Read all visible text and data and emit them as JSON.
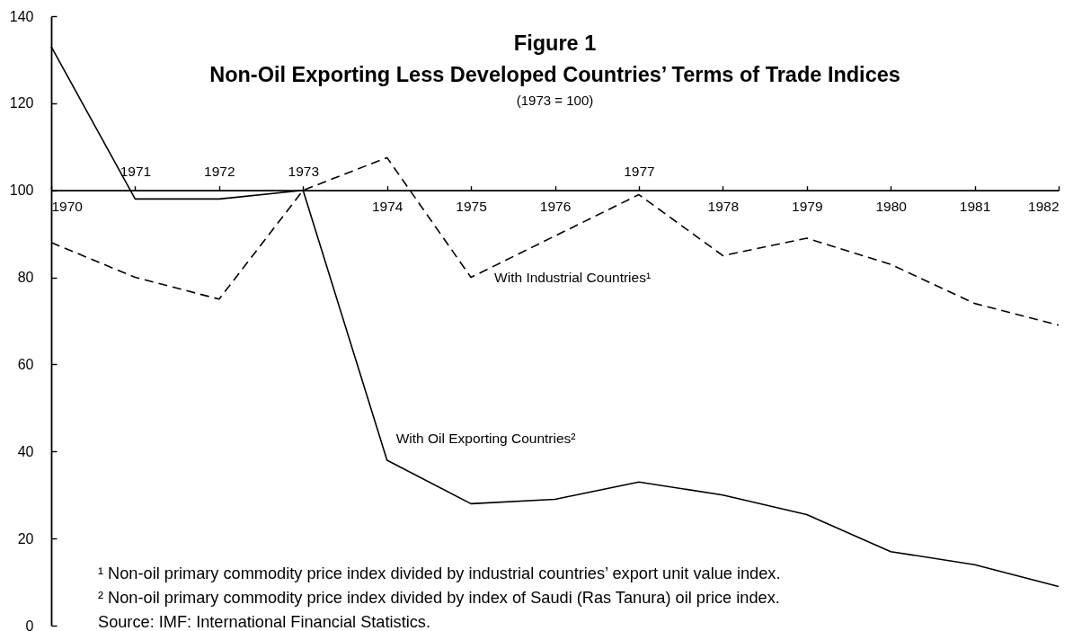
{
  "chart_data": {
    "type": "line",
    "title": "Figure 1\nNon-Oil Exporting Less Developed Countries’ Terms of Trade Indices",
    "subtitle": "(1973 = 100)",
    "categories": [
      "1970",
      "1971",
      "1972",
      "1973",
      "1974",
      "1975",
      "1976",
      "1977",
      "1978",
      "1979",
      "1980",
      "1981",
      "1982"
    ],
    "series": [
      {
        "color": "#000000",
        "line_style": "solid",
        "values": [
          133,
          98,
          98,
          100,
          38,
          28,
          29,
          33,
          30,
          25.5,
          17,
          14,
          9
        ]
      },
      {
        "color": "#000000",
        "line_style": "dashed",
        "values": [
          88,
          80,
          75,
          100,
          107.5,
          80,
          89.5,
          99,
          85,
          89,
          83,
          74,
          69
        ]
      }
    ],
    "ylim": [
      0,
      140
    ],
    "yticks": [
      0,
      20,
      40,
      60,
      80,
      100,
      120,
      140
    ],
    "annotations": [
      {
        "text": "With Industrial Countries¹",
        "x": "1975",
        "y": 80
      },
      {
        "text": "With Oil Exporting Countries²",
        "x": "1974",
        "y": 38
      },
      "¹ Non-oil primary commodity price index divided by industrial countries’ export unit value index.",
      "² Non-oil primary commodity price index divided by index of Saudi (Ras Tanura) oil price index.",
      "Source: IMF: International Financial Statistics."
    ]
  }
}
